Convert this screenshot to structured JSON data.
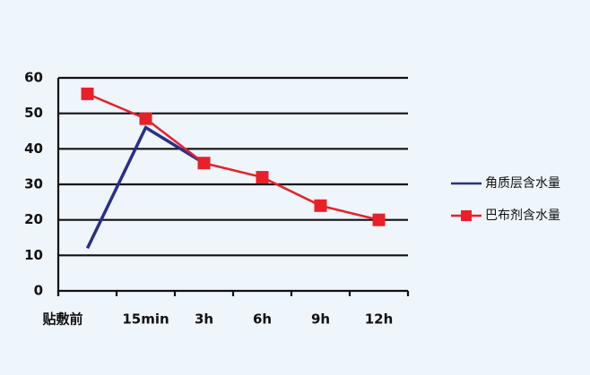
{
  "chart_data": {
    "type": "line",
    "categories": [
      "贴敷前",
      "15min",
      "3h",
      "6h",
      "9h",
      "12h"
    ],
    "series": [
      {
        "name": "角质层含水量",
        "color": "#2a3086",
        "values": [
          12,
          46,
          36,
          null,
          null,
          null
        ]
      },
      {
        "name": "巴布剂含水量",
        "color": "#e8202a",
        "values": [
          55.5,
          48.5,
          36,
          32,
          24,
          20
        ]
      }
    ],
    "ylim": [
      0,
      60
    ],
    "yticks": [
      0,
      10,
      20,
      30,
      40,
      50,
      60
    ],
    "grid": true,
    "legend": "right"
  }
}
